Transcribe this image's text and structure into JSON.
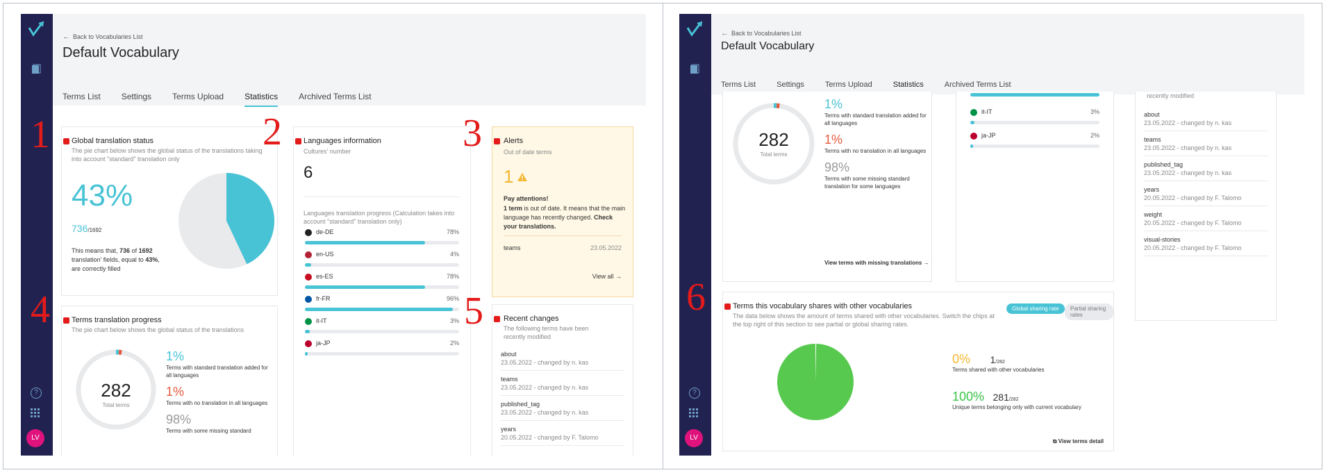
{
  "annotations": [
    "1",
    "2",
    "3",
    "4",
    "5",
    "6"
  ],
  "app": {
    "back_label": "Back to Vocabularies List",
    "title": "Default Vocabulary",
    "tabs": [
      "Terms List",
      "Settings",
      "Terms Upload",
      "Statistics",
      "Archived Terms List"
    ],
    "active_tab": "Statistics",
    "avatar": "LV",
    "accent_color": "#48c3d6",
    "sidebar_color": "#222251",
    "marker_color": "#e31b1b",
    "icons": [
      "logo-icon",
      "book-icon",
      "help-icon",
      "apps-grid-icon",
      "back-arrow-icon"
    ]
  },
  "global_status": {
    "title": "Global translation status",
    "subtitle": "The pie chart below shows the global status of the translations taking into account \"standard\" translation only",
    "percent": "43%",
    "count": "736",
    "total": "/1692",
    "desc_1": "This means that, ",
    "desc_count": "736",
    "desc_2": " of ",
    "desc_total": "1692",
    "desc_3": " translation' fields, equal to ",
    "desc_pct": "43%",
    "desc_4": ", are correctly filled",
    "pie_fraction": 0.43
  },
  "languages": {
    "title": "Languages information",
    "cultures_label": "Cultures' number",
    "cultures_count": "6",
    "progress_label": "Languages translation progress (Calculation takes into account \"standard\" translation only)",
    "items": [
      {
        "code": "de-DE",
        "pct": "78%",
        "value": 0.78,
        "flag": "#222"
      },
      {
        "code": "en-US",
        "pct": "4%",
        "value": 0.04,
        "flag": "#b22234"
      },
      {
        "code": "es-ES",
        "pct": "78%",
        "value": 0.78,
        "flag": "#c60b1e"
      },
      {
        "code": "fr-FR",
        "pct": "96%",
        "value": 0.96,
        "flag": "#0055a4"
      },
      {
        "code": "it-IT",
        "pct": "3%",
        "value": 0.03,
        "flag": "#009246"
      },
      {
        "code": "ja-JP",
        "pct": "2%",
        "value": 0.02,
        "flag": "#bc002d"
      }
    ]
  },
  "alerts": {
    "title": "Alerts",
    "subtitle": "Out of date terms",
    "count": "1",
    "warning_icon": "warning-icon",
    "heading": "Pay attentions!",
    "text_bold": "1 term",
    "text_1": " is out of date. It means that the main language has recently changed. ",
    "text_link": "Check your translations.",
    "term": "teams",
    "date": "23.05.2022",
    "view_all": "View all"
  },
  "terms_progress": {
    "title": "Terms translation progress",
    "subtitle": "The pie chart below shows the global status of the translations",
    "total": "282",
    "total_label": "Total terms",
    "stats": [
      {
        "pct": "1%",
        "label": "Terms with standard translation added for all languages",
        "tone": "cyan"
      },
      {
        "pct": "1%",
        "label": "Terms with no translation in all languages",
        "tone": "red"
      },
      {
        "pct": "98%",
        "label": "Terms with some missing standard translation for some languages",
        "tone": "grey"
      }
    ],
    "left_clipped_label": "Terms with some missing standard",
    "view_missing": "View terms with missing translations"
  },
  "recent": {
    "title": "Recent changes",
    "subtitle": "The following terms have been recently modified",
    "items": [
      {
        "term": "about",
        "meta": "23.05.2022 - changed by n. kas"
      },
      {
        "term": "teams",
        "meta": "23.05.2022 - changed by n. kas"
      },
      {
        "term": "published_tag",
        "meta": "23.05.2022 - changed by n. kas"
      },
      {
        "term": "years",
        "meta": "20.05.2022 - changed by F. Talomo"
      },
      {
        "term": "weight",
        "meta": "20.05.2022 - changed by F. Talomo"
      },
      {
        "term": "visual-stories",
        "meta": "20.05.2022 - changed by F. Talomo"
      }
    ],
    "clipped_header": "recently modified"
  },
  "sharing": {
    "title": "Terms this vocabulary shares with other vocabularies",
    "subtitle": "The data below shows the amount of terms shared with other vocabularies. Switch the chips at the top right of this section to see partial or global sharing rates.",
    "chip_global": "Global sharing rate",
    "chip_partial": "Partial sharing rates",
    "shared_pct": "0%",
    "shared_count": "1",
    "shared_total": "/282",
    "shared_label": "Terms shared with other vocabularies",
    "unique_pct": "100%",
    "unique_count": "281",
    "unique_total": "/282",
    "unique_label": "Unique terms belonging only with current vocabulary",
    "view_detail": "View terms detail",
    "shared_fraction": 0.0035
  }
}
